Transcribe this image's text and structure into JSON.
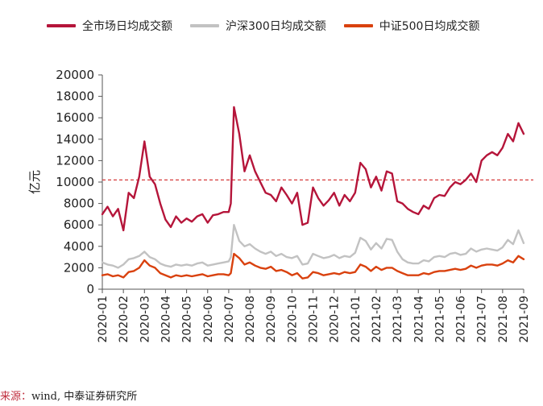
{
  "chart_data": {
    "type": "line",
    "title": "",
    "ylabel": "亿元",
    "ylim": [
      0,
      20000
    ],
    "yticks": [
      0,
      2000,
      4000,
      6000,
      8000,
      10000,
      12000,
      14000,
      16000,
      18000,
      20000
    ],
    "ytick_labels": [
      "0",
      "2000",
      "4000",
      "6000",
      "8000",
      "10000",
      "12000",
      "14000",
      "16000",
      "18000",
      "20000"
    ],
    "categories": [
      "2020-01",
      "2020-02",
      "2020-03",
      "2020-04",
      "2020-05",
      "2020-06",
      "2020-07",
      "2020-08",
      "2020-09",
      "2020-10",
      "2020-11",
      "2020-12",
      "2021-01",
      "2021-02",
      "2021-03",
      "2021-04",
      "2021-05",
      "2021-06",
      "2021-07",
      "2021-08",
      "2021-09"
    ],
    "x": [
      0.0,
      0.25,
      0.5,
      0.75,
      1.0,
      1.25,
      1.5,
      1.75,
      2.0,
      2.25,
      2.5,
      2.75,
      3.0,
      3.25,
      3.5,
      3.75,
      4.0,
      4.25,
      4.5,
      4.75,
      5.0,
      5.25,
      5.5,
      5.75,
      6.0,
      6.1,
      6.25,
      6.5,
      6.75,
      7.0,
      7.25,
      7.5,
      7.75,
      8.0,
      8.25,
      8.5,
      8.75,
      9.0,
      9.25,
      9.5,
      9.75,
      10.0,
      10.25,
      10.5,
      10.75,
      11.0,
      11.25,
      11.5,
      11.75,
      12.0,
      12.25,
      12.5,
      12.75,
      13.0,
      13.25,
      13.5,
      13.75,
      14.0,
      14.25,
      14.5,
      14.75,
      15.0,
      15.25,
      15.5,
      15.75,
      16.0,
      16.25,
      16.5,
      16.75,
      17.0,
      17.25,
      17.5,
      17.75,
      18.0,
      18.25,
      18.5,
      18.75,
      19.0,
      19.25,
      19.5,
      19.75,
      20.0
    ],
    "series": [
      {
        "name": "全市场日均成交额",
        "color": "#b5153a",
        "values": [
          7000,
          7700,
          6800,
          7500,
          5500,
          9000,
          8500,
          10500,
          13800,
          10500,
          9800,
          8000,
          6500,
          5800,
          6800,
          6200,
          6600,
          6300,
          6800,
          7000,
          6200,
          6900,
          7000,
          7200,
          7200,
          8000,
          17000,
          14500,
          11000,
          12500,
          11000,
          10000,
          9000,
          8800,
          8200,
          9500,
          8800,
          8000,
          9000,
          6000,
          6200,
          9500,
          8500,
          7800,
          8300,
          9000,
          7800,
          8800,
          8200,
          9000,
          11800,
          11200,
          9500,
          10500,
          9200,
          11000,
          10800,
          8200,
          8000,
          7500,
          7200,
          7000,
          7800,
          7500,
          8500,
          8800,
          8700,
          9500,
          10000,
          9800,
          10200,
          10800,
          10000,
          12000,
          12500,
          12800,
          12500,
          13200,
          14500,
          13800,
          15500,
          14500
        ]
      },
      {
        "name": "沪深300日均成交额",
        "color": "#c2c2c2",
        "values": [
          2500,
          2300,
          2200,
          2000,
          2300,
          2800,
          2900,
          3100,
          3500,
          3000,
          2800,
          2400,
          2200,
          2100,
          2300,
          2200,
          2300,
          2200,
          2400,
          2500,
          2200,
          2300,
          2400,
          2500,
          2600,
          3000,
          6000,
          4500,
          4000,
          4200,
          3800,
          3500,
          3300,
          3500,
          3100,
          3300,
          3000,
          2900,
          3100,
          2300,
          2400,
          3300,
          3100,
          2900,
          3000,
          3200,
          2900,
          3100,
          3000,
          3400,
          4800,
          4500,
          3700,
          4300,
          3800,
          4700,
          4600,
          3500,
          2800,
          2500,
          2400,
          2400,
          2700,
          2600,
          3000,
          3100,
          3000,
          3300,
          3400,
          3200,
          3300,
          3800,
          3500,
          3700,
          3800,
          3700,
          3600,
          3900,
          4600,
          4200,
          5500,
          4300
        ]
      },
      {
        "name": "中证500日均成交额",
        "color": "#d9410e",
        "values": [
          1300,
          1400,
          1200,
          1300,
          1100,
          1600,
          1700,
          2000,
          2700,
          2200,
          2000,
          1500,
          1300,
          1100,
          1300,
          1200,
          1300,
          1200,
          1300,
          1400,
          1200,
          1300,
          1400,
          1400,
          1300,
          1500,
          3300,
          2900,
          2300,
          2500,
          2200,
          2000,
          1900,
          2100,
          1700,
          1800,
          1600,
          1300,
          1500,
          1000,
          1100,
          1600,
          1500,
          1300,
          1400,
          1500,
          1400,
          1600,
          1500,
          1600,
          2300,
          2100,
          1700,
          2100,
          1800,
          2000,
          2000,
          1700,
          1500,
          1300,
          1300,
          1300,
          1500,
          1400,
          1600,
          1700,
          1700,
          1800,
          1900,
          1800,
          1900,
          2200,
          2000,
          2200,
          2300,
          2300,
          2200,
          2400,
          2700,
          2500,
          3100,
          2800
        ]
      }
    ],
    "reference_line": {
      "value": 10200,
      "color": "#d63a3a",
      "style": "dashed"
    },
    "grid": false,
    "legend_position": "top"
  },
  "source": {
    "label": "来源：",
    "text": "wind, 中泰证券研究所"
  }
}
